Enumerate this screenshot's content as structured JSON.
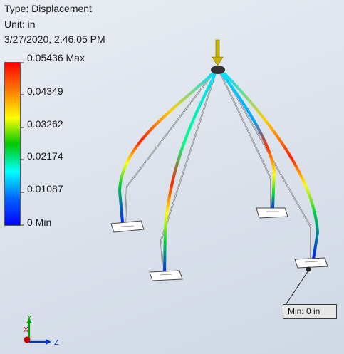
{
  "result_info": {
    "type_line": "Type: Displacement",
    "unit_line": "Unit: in",
    "timestamp_line": "3/27/2020, 2:46:05 PM"
  },
  "legend": {
    "max_label": "0.05436 Max",
    "ticks": [
      "0.04349",
      "0.03262",
      "0.02174",
      "0.01087"
    ],
    "min_label": "0 Min",
    "colors": [
      "#ff0000",
      "#ff7a00",
      "#ffff00",
      "#00c800",
      "#00ffff",
      "#0060ff",
      "#0000ff"
    ]
  },
  "probe": {
    "label": "Min: 0 in"
  },
  "triad": {
    "x_axis": "X",
    "y_axis": "Y",
    "z_axis": "Z",
    "colors": {
      "x": "#c00000",
      "y": "#00a000",
      "z": "#0030d0"
    }
  },
  "model": {
    "load_arrow_color": "#c8b400",
    "frame_color": "#5a5a5a",
    "foot_color": "#ffffff"
  }
}
